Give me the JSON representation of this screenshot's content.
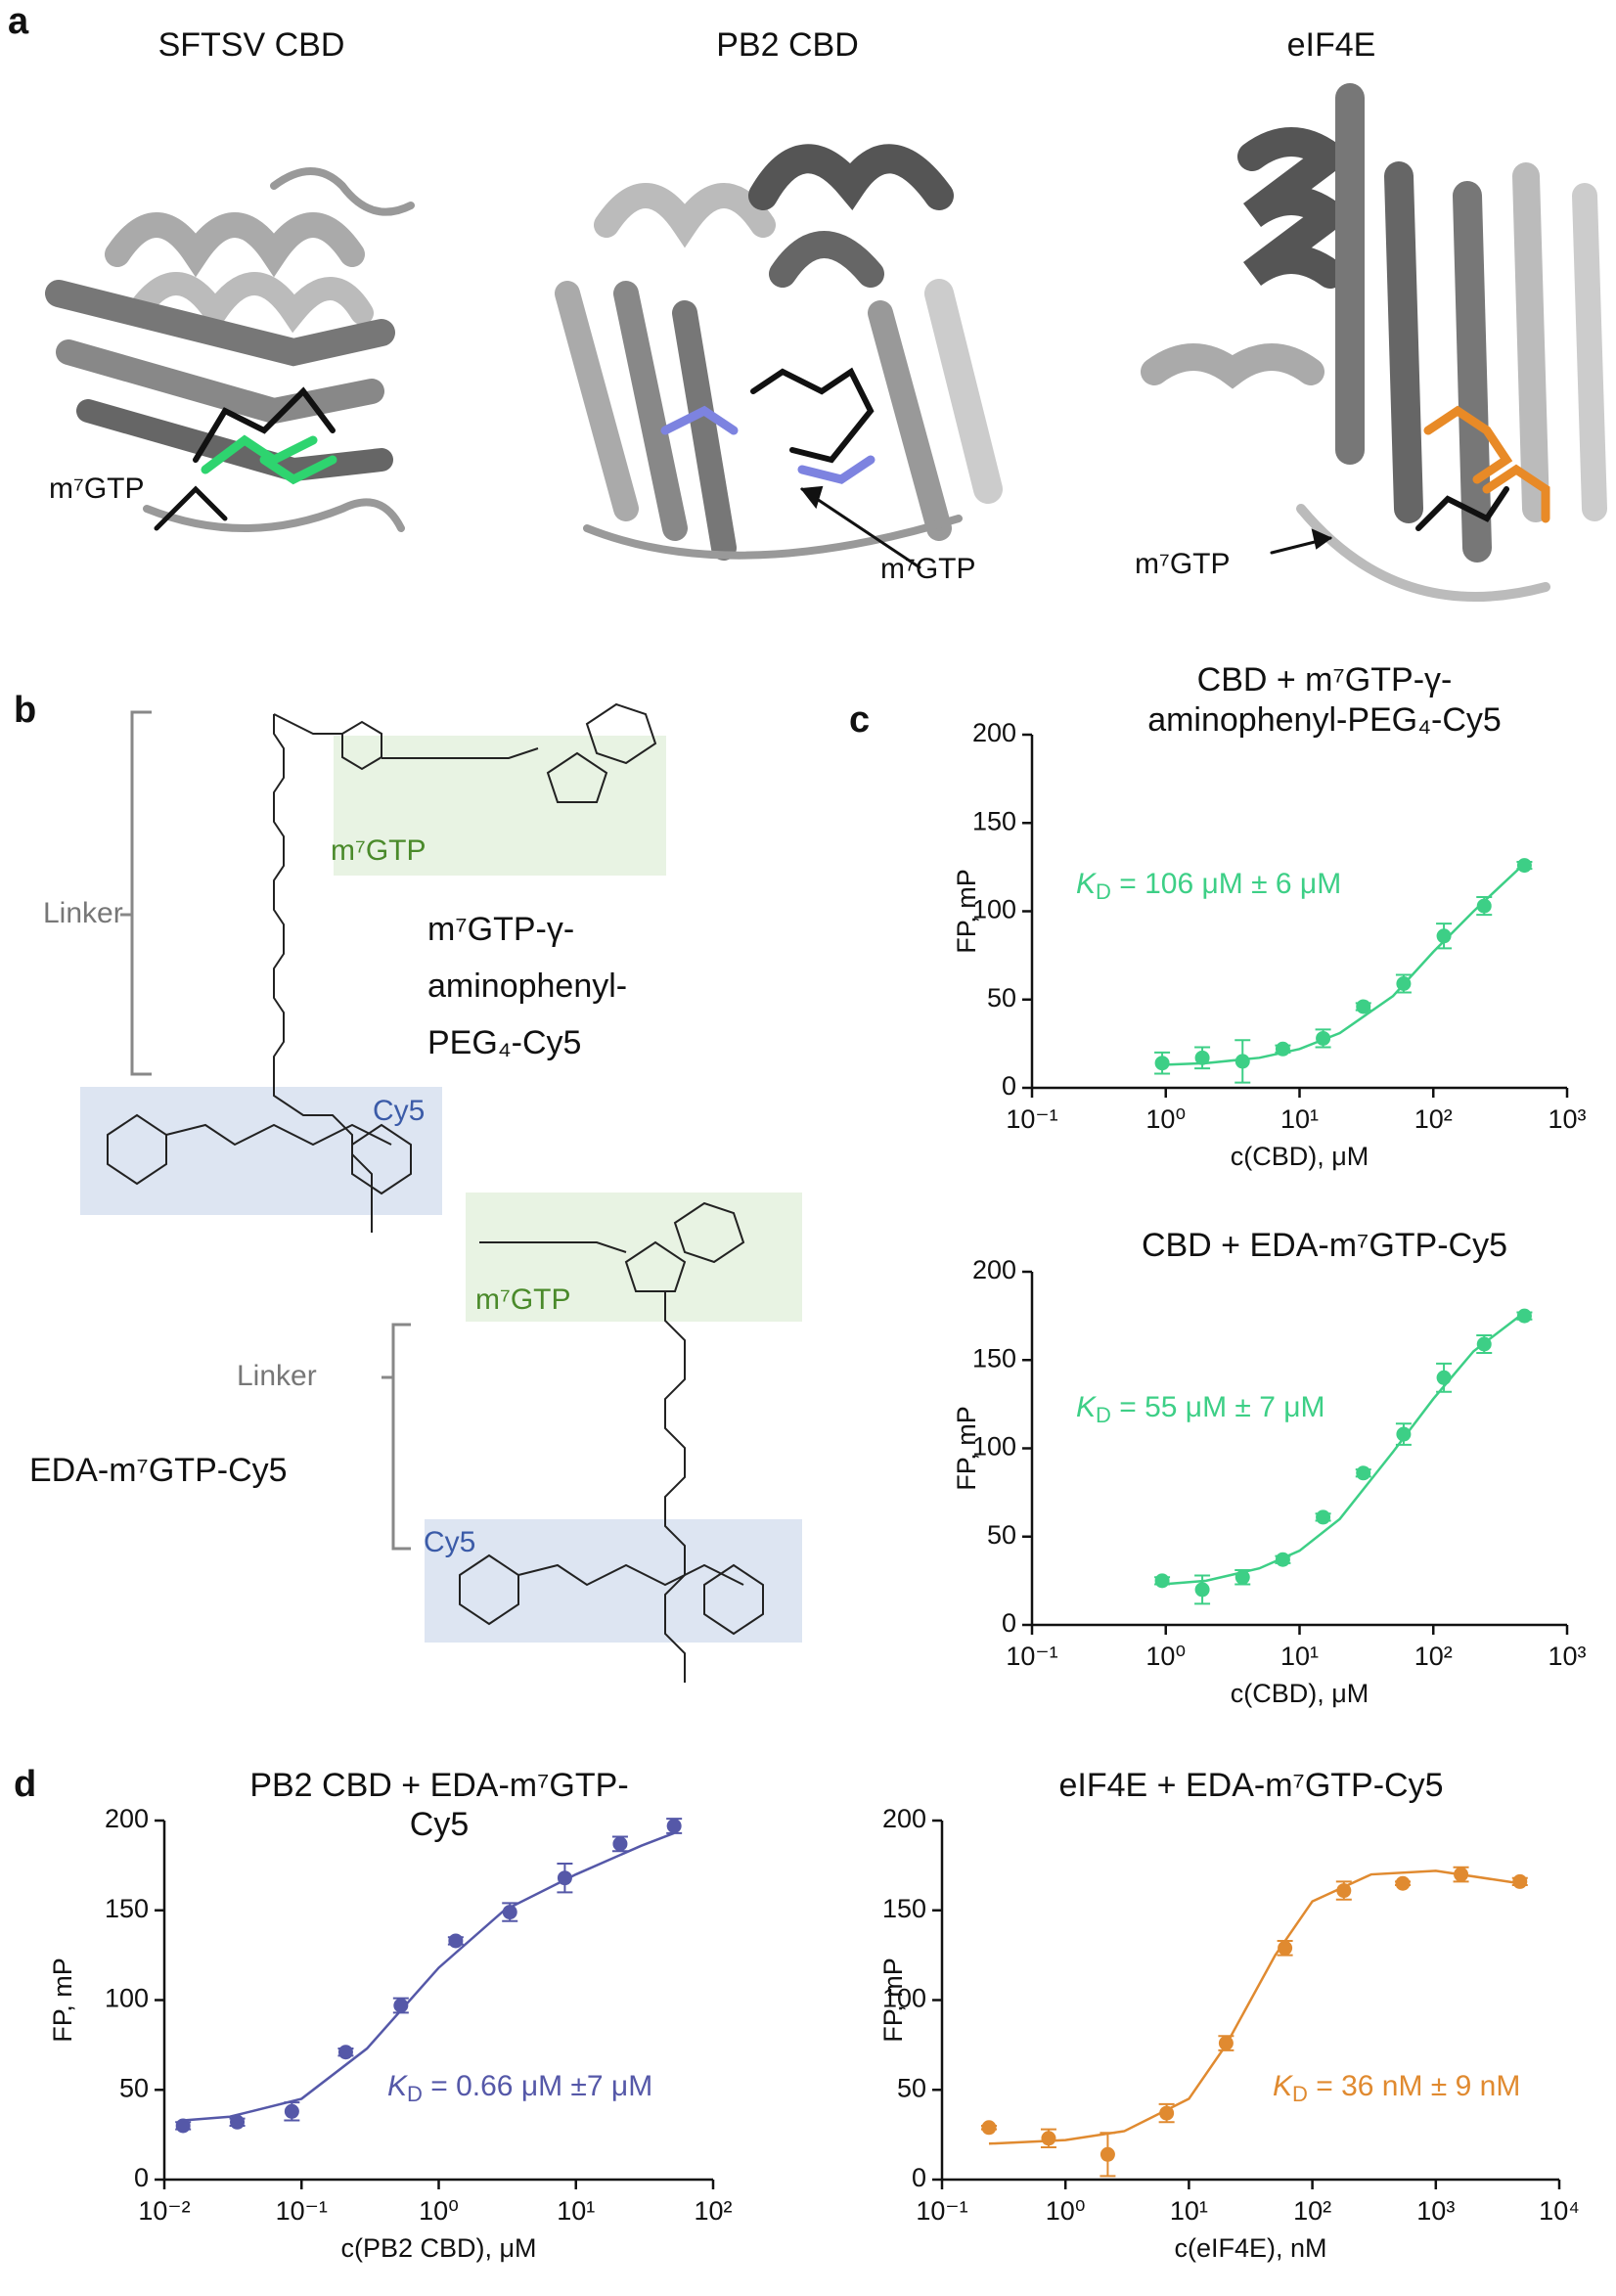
{
  "panel_labels": [
    "a",
    "b",
    "c",
    "d"
  ],
  "panel_a": {
    "structures": [
      {
        "title": "SFTSV CBD",
        "ligand": "m⁷GTP"
      },
      {
        "title": "PB2 CBD",
        "ligand": "m⁷GTP"
      },
      {
        "title": "eIF4E",
        "ligand": "m⁷GTP"
      }
    ]
  },
  "panel_b": {
    "probes": [
      {
        "name": [
          "m⁷GTP-γ-",
          "aminophenyl-",
          "PEG₄-Cy5"
        ],
        "cap": "m⁷GTP",
        "linker": "Linker",
        "dye": "Cy5"
      },
      {
        "name": [
          "EDA-m⁷GTP-Cy5"
        ],
        "cap": "m⁷GTP",
        "linker": "Linker",
        "dye": "Cy5"
      }
    ]
  },
  "chart_data": [
    {
      "type": "scatter",
      "title": [
        "CBD + m⁷GTP-γ-",
        "aminophenyl-PEG₄-Cy5"
      ],
      "xlabel": "c(CBD), μM",
      "ylabel": "FP, mP",
      "xscale": "log",
      "xlim": [
        0.1,
        1000
      ],
      "xticks": [
        {
          "value": 0.1,
          "label": "10⁻¹"
        },
        {
          "value": 1,
          "label": "10⁰"
        },
        {
          "value": 10,
          "label": "10¹"
        },
        {
          "value": 100,
          "label": "10²"
        },
        {
          "value": 1000,
          "label": "10³"
        }
      ],
      "ylim": [
        0,
        200
      ],
      "yticks": [
        0,
        50,
        100,
        150,
        200
      ],
      "color": "#3dcf86",
      "x": [
        0.94,
        1.875,
        3.75,
        7.5,
        15,
        30,
        60,
        120,
        240,
        480
      ],
      "values": [
        14,
        17,
        15,
        22,
        28,
        46,
        59,
        86,
        103,
        126
      ],
      "errors": [
        6,
        6,
        12,
        2,
        5,
        2,
        5,
        7,
        5,
        2
      ],
      "fit": {
        "x": [
          0.94,
          2,
          5,
          10,
          20,
          50,
          100,
          200,
          480
        ],
        "values": [
          13,
          14,
          17,
          22,
          31,
          52,
          77,
          100,
          127
        ]
      },
      "annotation": {
        "symbol": "K",
        "subscript": "D",
        "text": " = 106 μM ± 6 μM"
      }
    },
    {
      "type": "scatter",
      "title": [
        "CBD + EDA-m⁷GTP-Cy5"
      ],
      "xlabel": "c(CBD), μM",
      "ylabel": "FP, mP",
      "xscale": "log",
      "xlim": [
        0.1,
        1000
      ],
      "xticks": [
        {
          "value": 0.1,
          "label": "10⁻¹"
        },
        {
          "value": 1,
          "label": "10⁰"
        },
        {
          "value": 10,
          "label": "10¹"
        },
        {
          "value": 100,
          "label": "10²"
        },
        {
          "value": 1000,
          "label": "10³"
        }
      ],
      "ylim": [
        0,
        200
      ],
      "yticks": [
        0,
        50,
        100,
        150,
        200
      ],
      "color": "#3dcf86",
      "x": [
        0.94,
        1.875,
        3.75,
        7.5,
        15,
        30,
        60,
        120,
        240,
        480
      ],
      "values": [
        25,
        20,
        27,
        37,
        61,
        86,
        108,
        140,
        159,
        175
      ],
      "errors": [
        2,
        8,
        4,
        2,
        2,
        2,
        6,
        8,
        5,
        2
      ],
      "fit": {
        "x": [
          0.94,
          2,
          5,
          10,
          20,
          50,
          100,
          200,
          480
        ],
        "values": [
          23,
          25,
          32,
          42,
          60,
          98,
          128,
          155,
          177
        ]
      },
      "annotation": {
        "symbol": "K",
        "subscript": "D",
        "text": " = 55 μM ± 7 μM"
      }
    },
    {
      "type": "scatter",
      "title": [
        "PB2 CBD + EDA-m⁷GTP-",
        "Cy5"
      ],
      "xlabel": "c(PB2 CBD), μM",
      "ylabel": "FP, mP",
      "xscale": "log",
      "xlim": [
        0.01,
        100
      ],
      "xticks": [
        {
          "value": 0.01,
          "label": "10⁻²"
        },
        {
          "value": 0.1,
          "label": "10⁻¹"
        },
        {
          "value": 1,
          "label": "10⁰"
        },
        {
          "value": 10,
          "label": "10¹"
        },
        {
          "value": 100,
          "label": "10²"
        }
      ],
      "ylim": [
        0,
        200
      ],
      "yticks": [
        0,
        50,
        100,
        150,
        200
      ],
      "color": "#5558a8",
      "x": [
        0.0137,
        0.034,
        0.085,
        0.21,
        0.53,
        1.33,
        3.3,
        8.3,
        21,
        52
      ],
      "values": [
        30,
        32,
        38,
        71,
        97,
        133,
        149,
        168,
        187,
        197
      ],
      "errors": [
        2,
        2,
        5,
        2,
        4,
        2,
        5,
        8,
        4,
        4
      ],
      "fit": {
        "x": [
          0.0137,
          0.03,
          0.1,
          0.3,
          1,
          3,
          10,
          30,
          52
        ],
        "values": [
          33,
          35,
          45,
          73,
          118,
          150,
          170,
          186,
          193
        ]
      },
      "annotation": {
        "symbol": "K",
        "subscript": "D",
        "text": " = 0.66 μM ±7 μM"
      }
    },
    {
      "type": "scatter",
      "title": [
        "eIF4E + EDA-m⁷GTP-Cy5"
      ],
      "xlabel": "c(eIF4E), nM",
      "ylabel": "FP, mP",
      "xscale": "log",
      "xlim": [
        0.1,
        10000
      ],
      "xticks": [
        {
          "value": 0.1,
          "label": "10⁻¹"
        },
        {
          "value": 1,
          "label": "10⁰"
        },
        {
          "value": 10,
          "label": "10¹"
        },
        {
          "value": 100,
          "label": "10²"
        },
        {
          "value": 1000,
          "label": "10³"
        },
        {
          "value": 10000,
          "label": "10⁴"
        }
      ],
      "ylim": [
        0,
        200
      ],
      "yticks": [
        0,
        50,
        100,
        150,
        200
      ],
      "color": "#e08a30",
      "x": [
        0.24,
        0.73,
        2.2,
        6.6,
        20,
        60,
        180,
        540,
        1600,
        4800
      ],
      "values": [
        29,
        23,
        14,
        37,
        76,
        129,
        161,
        165,
        170,
        166
      ],
      "errors": [
        1,
        5,
        12,
        5,
        4,
        4,
        5,
        1,
        4,
        2
      ],
      "fit": {
        "x": [
          0.24,
          1,
          3,
          10,
          20,
          50,
          100,
          300,
          1000,
          4800
        ],
        "values": [
          20,
          22,
          27,
          45,
          75,
          125,
          155,
          170,
          172,
          165
        ]
      },
      "annotation": {
        "symbol": "K",
        "subscript": "D",
        "text": " = 36 nM ± 9 nM"
      }
    }
  ]
}
